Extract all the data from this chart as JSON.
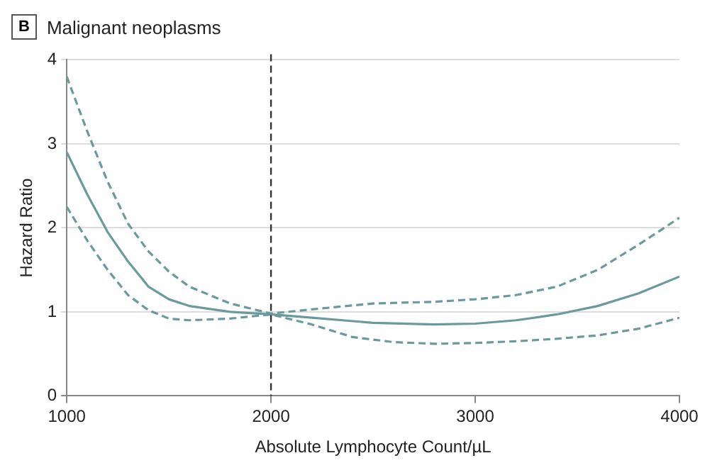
{
  "chart_data": {
    "type": "line",
    "title": "Malignant neoplasms",
    "annotations": [
      "B"
    ],
    "xlabel": "Absolute Lymphocyte Count/µL",
    "ylabel": "Hazard Ratio",
    "xlim": [
      1000,
      4000
    ],
    "xticks": [
      1000,
      2000,
      3000,
      4000
    ],
    "ylim": [
      0,
      4
    ],
    "yticks": [
      0,
      1,
      2,
      3,
      4
    ],
    "grid": "y",
    "legend": false,
    "marker": "none",
    "ref_lines": [
      {
        "axis": "x",
        "value": 2000,
        "color": "#333333",
        "line_style": "dashed"
      }
    ],
    "series": [
      {
        "color": "#6b9a9c",
        "line_style": "solid",
        "x": [
          1000,
          1100,
          1200,
          1300,
          1400,
          1500,
          1600,
          1800,
          2000,
          2200,
          2500,
          2800,
          3000,
          3200,
          3400,
          3600,
          3800,
          4000
        ],
        "values": [
          2.9,
          2.4,
          1.95,
          1.6,
          1.3,
          1.15,
          1.07,
          1.0,
          0.97,
          0.93,
          0.87,
          0.85,
          0.86,
          0.9,
          0.97,
          1.07,
          1.22,
          1.42
        ]
      },
      {
        "color": "#6b9a9c",
        "line_style": "dashed",
        "x": [
          1000,
          1100,
          1200,
          1300,
          1400,
          1500,
          1600,
          1800,
          2000,
          2200,
          2500,
          2800,
          3000,
          3200,
          3400,
          3600,
          3800,
          4000
        ],
        "values": [
          3.8,
          3.15,
          2.55,
          2.05,
          1.72,
          1.48,
          1.3,
          1.1,
          0.98,
          1.03,
          1.1,
          1.12,
          1.15,
          1.2,
          1.3,
          1.5,
          1.8,
          2.12
        ]
      },
      {
        "color": "#6b9a9c",
        "line_style": "dashed",
        "x": [
          1000,
          1100,
          1200,
          1300,
          1400,
          1500,
          1600,
          1800,
          2000,
          2200,
          2400,
          2600,
          2800,
          3000,
          3200,
          3400,
          3600,
          3800,
          4000
        ],
        "values": [
          2.25,
          1.85,
          1.5,
          1.2,
          1.02,
          0.92,
          0.9,
          0.92,
          0.97,
          0.85,
          0.7,
          0.64,
          0.62,
          0.63,
          0.65,
          0.68,
          0.72,
          0.8,
          0.93
        ]
      }
    ]
  }
}
